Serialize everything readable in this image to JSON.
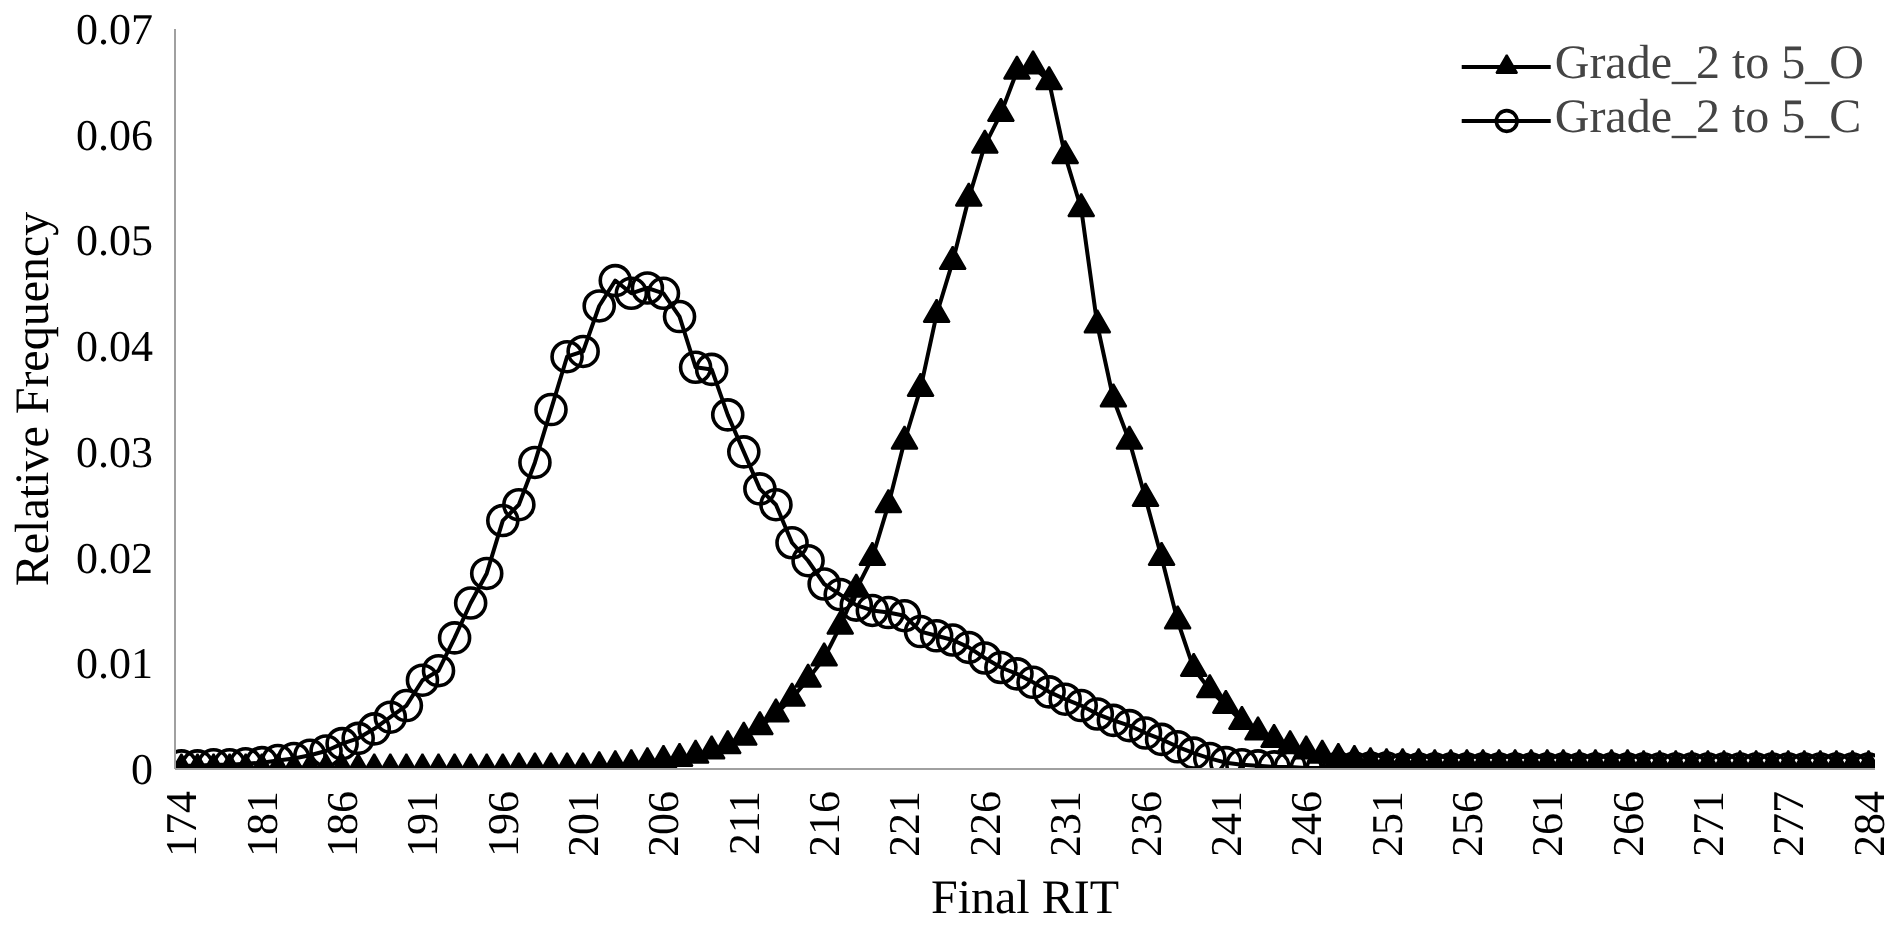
{
  "chart_data": {
    "type": "line",
    "xlabel": "Final RIT",
    "ylabel": "Relative Frequency",
    "categories": [
      "174",
      null,
      null,
      null,
      null,
      "181",
      null,
      null,
      null,
      null,
      "186",
      null,
      null,
      null,
      null,
      "191",
      null,
      null,
      null,
      null,
      "196",
      null,
      null,
      null,
      null,
      "201",
      null,
      null,
      null,
      null,
      "206",
      null,
      null,
      null,
      null,
      "211",
      null,
      null,
      null,
      null,
      "216",
      null,
      null,
      null,
      null,
      "221",
      null,
      null,
      null,
      null,
      "226",
      null,
      null,
      null,
      null,
      "231",
      null,
      null,
      null,
      null,
      "236",
      null,
      null,
      null,
      null,
      "241",
      null,
      null,
      null,
      null,
      "246",
      null,
      null,
      null,
      null,
      "251",
      null,
      null,
      null,
      null,
      "256",
      null,
      null,
      null,
      null,
      "261",
      null,
      null,
      null,
      null,
      "266",
      null,
      null,
      null,
      null,
      "271",
      null,
      null,
      null,
      null,
      "277",
      null,
      null,
      null,
      null,
      "284"
    ],
    "series": [
      {
        "name": "Grade_2 to 5_O",
        "color": "#000000",
        "marker": "triangle",
        "values": [
          0,
          0,
          0,
          0,
          0,
          0,
          0,
          0,
          0,
          0,
          0,
          0,
          0,
          0,
          0,
          0,
          0,
          0,
          0,
          0,
          0,
          0.0001,
          0.0001,
          0.0001,
          0.0001,
          0.0001,
          0.0002,
          0.0003,
          0.0004,
          0.0006,
          0.0008,
          0.001,
          0.0013,
          0.0017,
          0.0022,
          0.003,
          0.004,
          0.0052,
          0.0067,
          0.0085,
          0.0105,
          0.0135,
          0.017,
          0.02,
          0.025,
          0.031,
          0.036,
          0.043,
          0.048,
          0.054,
          0.059,
          0.062,
          0.066,
          0.0665,
          0.065,
          0.058,
          0.053,
          0.042,
          0.035,
          0.031,
          0.0256,
          0.02,
          0.014,
          0.0095,
          0.0075,
          0.006,
          0.0045,
          0.0035,
          0.0028,
          0.0022,
          0.0017,
          0.0013,
          0.001,
          0.0008,
          0.0006,
          0.0005,
          0.0005,
          0.0005,
          0.0004,
          0.0004,
          0.0004,
          0.0004,
          0.0004,
          0.0004,
          0.0004,
          0.0004,
          0.0004,
          0.0004,
          0.0004,
          0.0004,
          0.0004,
          0.0003,
          0.0003,
          0.0003,
          0.0003,
          0.0003,
          0.0003,
          0.0003,
          0.0003,
          0.0003,
          0.0003,
          0.0003,
          0.0003,
          0.0003,
          0.0003,
          0.0003
        ]
      },
      {
        "name": "Grade_2 to 5_C",
        "color": "#000000",
        "marker": "circle",
        "values": [
          0.0003,
          0.0003,
          0.0004,
          0.0004,
          0.0005,
          0.0006,
          0.0008,
          0.001,
          0.0013,
          0.0017,
          0.0024,
          0.0029,
          0.0038,
          0.0049,
          0.006,
          0.0084,
          0.0093,
          0.0124,
          0.0157,
          0.0185,
          0.0235,
          0.025,
          0.029,
          0.034,
          0.039,
          0.0395,
          0.0438,
          0.0462,
          0.045,
          0.0455,
          0.045,
          0.0428,
          0.038,
          0.0378,
          0.0335,
          0.03,
          0.0265,
          0.025,
          0.0214,
          0.0197,
          0.0175,
          0.0165,
          0.0155,
          0.015,
          0.0148,
          0.0145,
          0.013,
          0.0126,
          0.0122,
          0.0115,
          0.0105,
          0.0096,
          0.009,
          0.0082,
          0.0073,
          0.0066,
          0.006,
          0.0052,
          0.0046,
          0.0041,
          0.0034,
          0.0028,
          0.0021,
          0.0015,
          0.001,
          0.0006,
          0.0004,
          0.0003,
          0.0002,
          0.0002,
          0.0001,
          0.0001,
          0.0001,
          0.0001,
          0.0001,
          0.0001,
          0,
          0,
          0,
          0,
          0,
          0,
          0,
          0,
          0,
          0,
          0,
          0,
          0,
          0,
          0,
          0,
          0,
          0,
          0,
          0,
          0,
          0,
          0,
          0,
          0,
          0,
          0,
          0,
          0,
          0
        ]
      }
    ],
    "ylim": [
      0,
      0.07
    ],
    "yticks": [
      0,
      0.01,
      0.02,
      0.03,
      0.04,
      0.05,
      0.06,
      0.07
    ],
    "grid": false,
    "legend": "top right",
    "line_style": "solid"
  }
}
